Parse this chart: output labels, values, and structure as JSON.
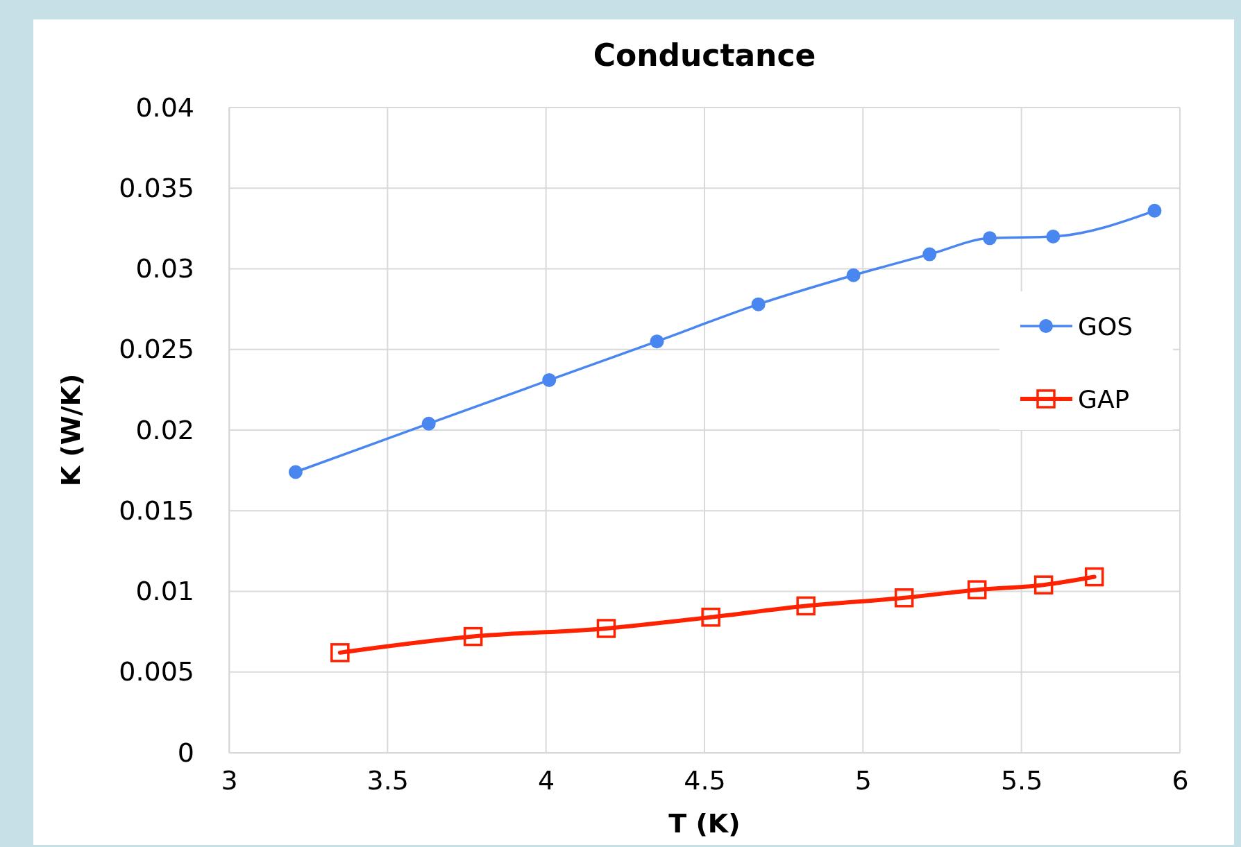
{
  "chart_data": {
    "type": "line",
    "title": "Conductance",
    "xlabel": "T (K)",
    "ylabel": "K (W/K)",
    "xlim": [
      3,
      6
    ],
    "xticks": [
      3,
      3.5,
      4,
      4.5,
      5,
      5.5,
      6
    ],
    "ylim": [
      0,
      0.04
    ],
    "yticks": [
      0,
      0.005,
      0.01,
      0.015,
      0.02,
      0.025,
      0.03,
      0.035,
      0.04
    ],
    "grid": true,
    "legend": "right",
    "series": [
      {
        "name": "GOS",
        "color": "#4a86f0",
        "marker": "circle",
        "x": [
          3.21,
          3.63,
          4.01,
          4.35,
          4.67,
          4.97,
          5.21,
          5.4,
          5.6,
          5.92
        ],
        "values": [
          0.0174,
          0.0204,
          0.0231,
          0.0255,
          0.0278,
          0.0296,
          0.0309,
          0.0319,
          0.032,
          0.0336
        ]
      },
      {
        "name": "GAP",
        "color": "#ff2200",
        "marker": "square",
        "x": [
          3.35,
          3.77,
          4.19,
          4.52,
          4.82,
          5.13,
          5.36,
          5.57,
          5.73
        ],
        "values": [
          0.0062,
          0.0072,
          0.0077,
          0.0084,
          0.0091,
          0.0096,
          0.0101,
          0.0104,
          0.0109
        ]
      }
    ]
  }
}
